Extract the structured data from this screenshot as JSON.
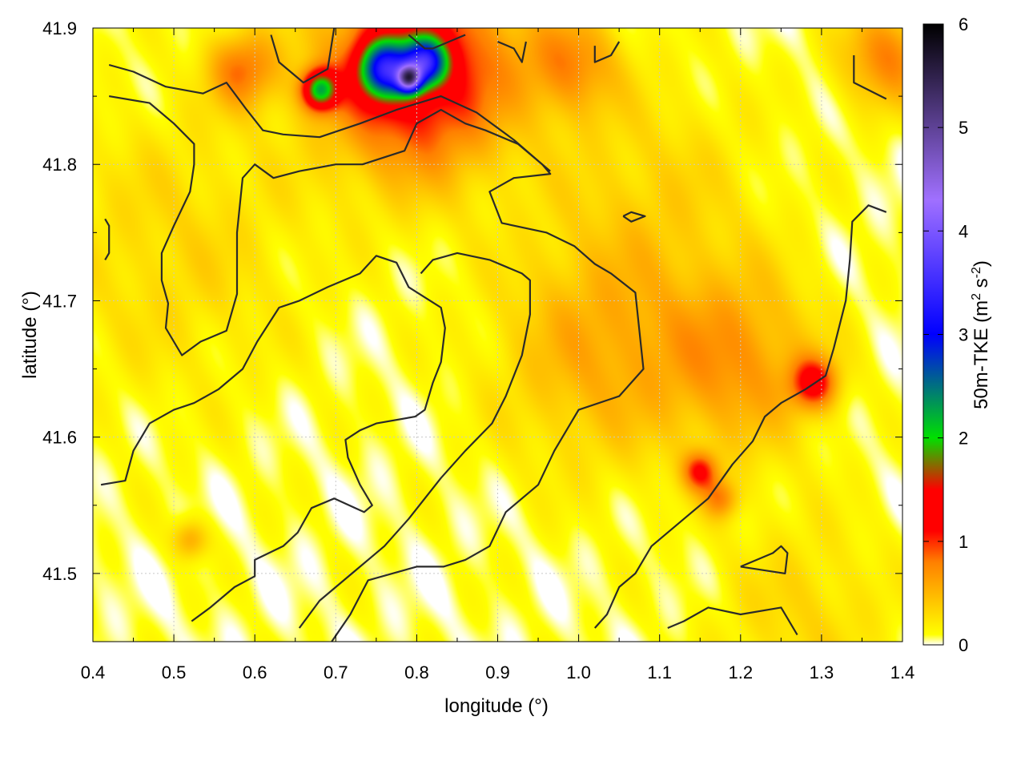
{
  "chart_data": {
    "type": "heatmap",
    "xlabel": "longitude (°)",
    "ylabel": "latitude (°)",
    "xlim": [
      0.4,
      1.4
    ],
    "ylim": [
      41.45,
      41.9
    ],
    "x_ticks": [
      "0.4",
      "0.5",
      "0.6",
      "0.7",
      "0.8",
      "0.9",
      "1.0",
      "1.1",
      "1.2",
      "1.3",
      "1.4"
    ],
    "y_ticks": [
      "41.5",
      "41.6",
      "41.7",
      "41.8",
      "41.9"
    ],
    "grid": true,
    "colorbar": {
      "label_main": "50m-TKE (m",
      "label_sup1": "2",
      "label_mid": " s",
      "label_sup2": "-2",
      "label_end": ")",
      "range": [
        0,
        6
      ],
      "ticks": [
        "0",
        "1",
        "2",
        "3",
        "4",
        "5",
        "6"
      ],
      "colormap": [
        "#ffffff",
        "#ffff00",
        "#ff8000",
        "#ff0000",
        "#ff0000",
        "#00e000",
        "#0000ff",
        "#a070ff",
        "#000000"
      ],
      "colormap_stops": [
        0,
        0.1,
        0.8,
        1.1,
        1.5,
        2.0,
        3.0,
        4.3,
        6.0
      ]
    },
    "hotspots": [
      {
        "lon": 0.8,
        "lat": 41.87,
        "value": 1.3,
        "spread": 0.08
      },
      {
        "lon": 0.76,
        "lat": 41.87,
        "value": 2.2,
        "spread": 0.022
      },
      {
        "lon": 0.79,
        "lat": 41.863,
        "value": 2.8,
        "spread": 0.01
      },
      {
        "lon": 0.81,
        "lat": 41.875,
        "value": 2.2,
        "spread": 0.018
      },
      {
        "lon": 0.68,
        "lat": 41.855,
        "value": 1.8,
        "spread": 0.015
      },
      {
        "lon": 0.585,
        "lat": 41.87,
        "value": 0.7,
        "spread": 0.03
      },
      {
        "lon": 0.99,
        "lat": 41.875,
        "value": 0.6,
        "spread": 0.04
      },
      {
        "lon": 1.38,
        "lat": 41.88,
        "value": 0.7,
        "spread": 0.04
      },
      {
        "lon": 1.02,
        "lat": 41.66,
        "value": 0.45,
        "spread": 0.09
      },
      {
        "lon": 1.2,
        "lat": 41.655,
        "value": 0.55,
        "spread": 0.07
      },
      {
        "lon": 1.29,
        "lat": 41.64,
        "value": 1.0,
        "spread": 0.02
      },
      {
        "lon": 1.15,
        "lat": 41.575,
        "value": 0.9,
        "spread": 0.015
      },
      {
        "lon": 1.175,
        "lat": 41.555,
        "value": 0.6,
        "spread": 0.015
      },
      {
        "lon": 0.52,
        "lat": 41.525,
        "value": 0.5,
        "spread": 0.015
      },
      {
        "lon": 1.09,
        "lat": 41.78,
        "value": 0.25,
        "spread": 0.1
      },
      {
        "lon": 0.5,
        "lat": 41.74,
        "value": 0.25,
        "spread": 0.12
      },
      {
        "lon": 1.28,
        "lat": 41.47,
        "value": 0.25,
        "spread": 0.08
      }
    ],
    "contours": [
      [
        [
          0.42,
          41.873
        ],
        [
          0.45,
          41.868
        ],
        [
          0.49,
          41.857
        ],
        [
          0.536,
          41.852
        ],
        [
          0.565,
          41.86
        ],
        [
          0.59,
          41.84
        ],
        [
          0.61,
          41.825
        ],
        [
          0.635,
          41.822
        ],
        [
          0.68,
          41.82
        ],
        [
          0.73,
          41.83
        ],
        [
          0.775,
          41.84
        ],
        [
          0.83,
          41.85
        ],
        [
          0.874,
          41.838
        ],
        [
          0.92,
          41.818
        ],
        [
          0.955,
          41.8
        ],
        [
          0.965,
          41.793
        ],
        [
          0.92,
          41.79
        ],
        [
          0.89,
          41.78
        ],
        [
          0.905,
          41.757
        ],
        [
          0.96,
          41.75
        ],
        [
          0.995,
          41.74
        ],
        [
          1.02,
          41.727
        ],
        [
          1.04,
          41.72
        ],
        [
          1.07,
          41.706
        ],
        [
          1.08,
          41.65
        ],
        [
          1.05,
          41.63
        ],
        [
          1.0,
          41.62
        ],
        [
          0.97,
          41.59
        ],
        [
          0.95,
          41.565
        ],
        [
          0.91,
          41.545
        ],
        [
          0.89,
          41.52
        ],
        [
          0.86,
          41.51
        ],
        [
          0.833,
          41.505
        ],
        [
          0.8,
          41.505
        ],
        [
          0.74,
          41.495
        ],
        [
          0.718,
          41.47
        ],
        [
          0.695,
          41.45
        ]
      ],
      [
        [
          0.42,
          41.85
        ],
        [
          0.47,
          41.845
        ],
        [
          0.5,
          41.83
        ],
        [
          0.525,
          41.815
        ],
        [
          0.525,
          41.8
        ],
        [
          0.52,
          41.78
        ],
        [
          0.5,
          41.755
        ],
        [
          0.485,
          41.735
        ],
        [
          0.485,
          41.715
        ],
        [
          0.493,
          41.698
        ],
        [
          0.49,
          41.68
        ],
        [
          0.51,
          41.66
        ],
        [
          0.533,
          41.67
        ],
        [
          0.565,
          41.678
        ],
        [
          0.578,
          41.705
        ],
        [
          0.578,
          41.75
        ],
        [
          0.585,
          41.79
        ],
        [
          0.6,
          41.8
        ],
        [
          0.623,
          41.79
        ],
        [
          0.655,
          41.795
        ],
        [
          0.7,
          41.8
        ],
        [
          0.733,
          41.8
        ],
        [
          0.785,
          41.81
        ],
        [
          0.8,
          41.83
        ],
        [
          0.83,
          41.84
        ],
        [
          0.86,
          41.83
        ],
        [
          0.885,
          41.825
        ],
        [
          0.925,
          41.815
        ],
        [
          0.955,
          41.8
        ],
        [
          0.965,
          41.795
        ]
      ],
      [
        [
          0.62,
          41.895
        ],
        [
          0.63,
          41.875
        ],
        [
          0.66,
          41.86
        ],
        [
          0.69,
          41.87
        ],
        [
          0.698,
          41.9
        ]
      ],
      [
        [
          0.79,
          41.895
        ],
        [
          0.81,
          41.885
        ],
        [
          0.82,
          41.885
        ],
        [
          0.86,
          41.895
        ]
      ],
      [
        [
          0.9,
          41.89
        ],
        [
          0.92,
          41.885
        ],
        [
          0.93,
          41.875
        ],
        [
          0.935,
          41.89
        ]
      ],
      [
        [
          1.02,
          41.887
        ],
        [
          1.02,
          41.875
        ],
        [
          1.04,
          41.88
        ],
        [
          1.05,
          41.89
        ]
      ],
      [
        [
          1.34,
          41.88
        ],
        [
          1.34,
          41.86
        ],
        [
          1.38,
          41.848
        ]
      ],
      [
        [
          0.415,
          41.76
        ],
        [
          0.42,
          41.755
        ],
        [
          0.42,
          41.735
        ],
        [
          0.415,
          41.73
        ]
      ],
      [
        [
          0.41,
          41.565
        ],
        [
          0.44,
          41.568
        ],
        [
          0.45,
          41.59
        ],
        [
          0.47,
          41.61
        ],
        [
          0.5,
          41.62
        ],
        [
          0.525,
          41.625
        ],
        [
          0.555,
          41.635
        ],
        [
          0.585,
          41.65
        ],
        [
          0.603,
          41.67
        ],
        [
          0.63,
          41.695
        ],
        [
          0.655,
          41.7
        ],
        [
          0.69,
          41.71
        ],
        [
          0.73,
          41.72
        ],
        [
          0.75,
          41.733
        ],
        [
          0.775,
          41.728
        ],
        [
          0.79,
          41.71
        ],
        [
          0.83,
          41.695
        ],
        [
          0.835,
          41.68
        ],
        [
          0.83,
          41.655
        ],
        [
          0.82,
          41.64
        ],
        [
          0.81,
          41.62
        ],
        [
          0.798,
          41.615
        ],
        [
          0.75,
          41.61
        ],
        [
          0.73,
          41.605
        ],
        [
          0.712,
          41.598
        ],
        [
          0.715,
          41.585
        ],
        [
          0.73,
          41.565
        ],
        [
          0.745,
          41.55
        ],
        [
          0.735,
          41.545
        ],
        [
          0.698,
          41.555
        ],
        [
          0.67,
          41.548
        ],
        [
          0.653,
          41.53
        ],
        [
          0.635,
          41.52
        ],
        [
          0.6,
          41.51
        ],
        [
          0.6,
          41.498
        ],
        [
          0.575,
          41.49
        ],
        [
          0.545,
          41.475
        ],
        [
          0.522,
          41.465
        ]
      ],
      [
        [
          1.02,
          41.46
        ],
        [
          1.035,
          41.47
        ],
        [
          1.05,
          41.49
        ],
        [
          1.07,
          41.5
        ],
        [
          1.09,
          41.52
        ],
        [
          1.13,
          41.54
        ],
        [
          1.16,
          41.555
        ],
        [
          1.19,
          41.58
        ],
        [
          1.215,
          41.597
        ],
        [
          1.23,
          41.615
        ],
        [
          1.25,
          41.625
        ],
        [
          1.28,
          41.635
        ],
        [
          1.305,
          41.645
        ],
        [
          1.315,
          41.665
        ],
        [
          1.33,
          41.7
        ],
        [
          1.335,
          41.73
        ],
        [
          1.338,
          41.758
        ],
        [
          1.358,
          41.77
        ],
        [
          1.38,
          41.765
        ]
      ],
      [
        [
          0.655,
          41.46
        ],
        [
          0.68,
          41.48
        ],
        [
          0.72,
          41.5
        ],
        [
          0.76,
          41.52
        ],
        [
          0.79,
          41.54
        ],
        [
          0.83,
          41.57
        ],
        [
          0.86,
          41.59
        ],
        [
          0.893,
          41.61
        ],
        [
          0.91,
          41.63
        ],
        [
          0.93,
          41.66
        ],
        [
          0.94,
          41.69
        ],
        [
          0.94,
          41.715
        ],
        [
          0.93,
          41.72
        ],
        [
          0.89,
          41.73
        ],
        [
          0.85,
          41.735
        ],
        [
          0.82,
          41.73
        ],
        [
          0.805,
          41.72
        ]
      ],
      [
        [
          1.11,
          41.46
        ],
        [
          1.13,
          41.465
        ],
        [
          1.16,
          41.475
        ],
        [
          1.2,
          41.47
        ],
        [
          1.25,
          41.475
        ],
        [
          1.27,
          41.455
        ]
      ],
      [
        [
          1.2,
          41.505
        ],
        [
          1.24,
          41.515
        ],
        [
          1.25,
          41.52
        ],
        [
          1.258,
          41.515
        ],
        [
          1.255,
          41.5
        ],
        [
          1.2,
          41.505
        ]
      ],
      [
        [
          1.055,
          41.762
        ],
        [
          1.065,
          41.765
        ],
        [
          1.082,
          41.762
        ],
        [
          1.065,
          41.758
        ],
        [
          1.055,
          41.762
        ]
      ]
    ]
  }
}
